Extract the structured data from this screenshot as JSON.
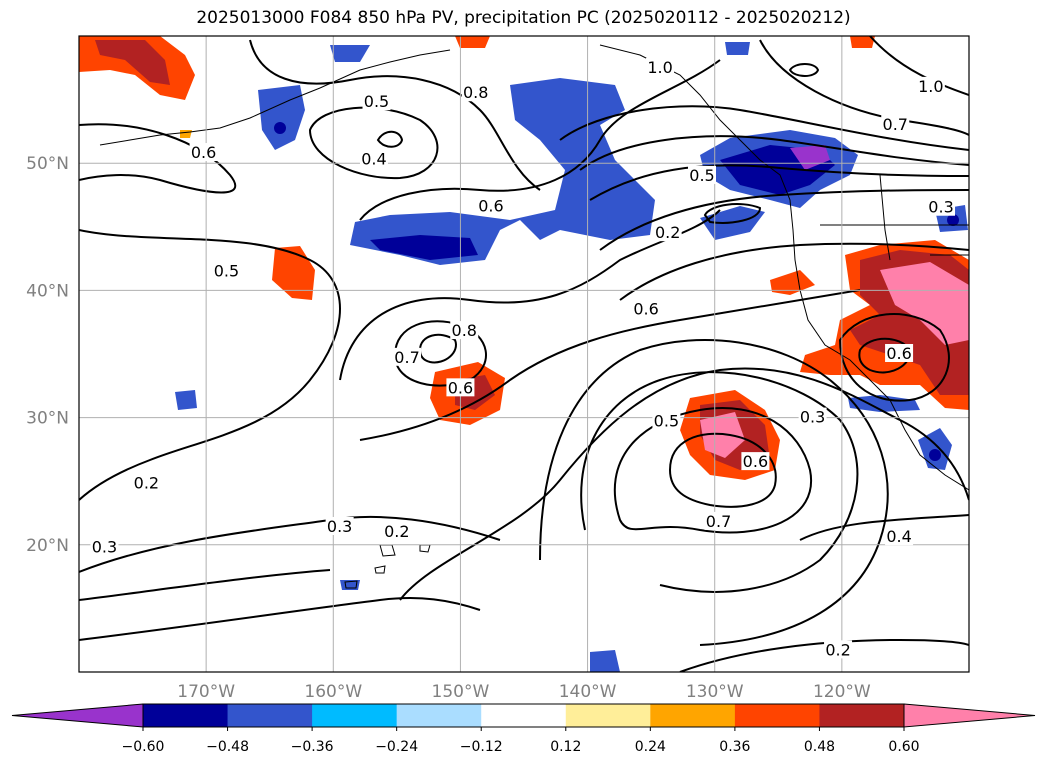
{
  "title": "2025013000 F084 850 hPa PV, precipitation PC (2025020112 - 2025020212)",
  "map": {
    "lon_range": [
      -180,
      -110
    ],
    "lat_range": [
      10,
      60
    ],
    "lat_ticks": [
      {
        "value": 50,
        "label": "50°N"
      },
      {
        "value": 40,
        "label": "40°N"
      },
      {
        "value": 30,
        "label": "30°N"
      },
      {
        "value": 20,
        "label": "20°N"
      }
    ],
    "lon_ticks": [
      {
        "value": -170,
        "label": "170°W"
      },
      {
        "value": -160,
        "label": "160°W"
      },
      {
        "value": -150,
        "label": "150°W"
      },
      {
        "value": -140,
        "label": "140°W"
      },
      {
        "value": -130,
        "label": "130°W"
      },
      {
        "value": -120,
        "label": "120°W"
      }
    ],
    "grid": true,
    "contour_labels": [
      {
        "text": "0.5",
        "lon": -168.4,
        "lat": 41.5
      },
      {
        "text": "0.6",
        "lon": -170.2,
        "lat": 50.8
      },
      {
        "text": "0.5",
        "lon": -156.6,
        "lat": 54.8
      },
      {
        "text": "0.8",
        "lon": -148.8,
        "lat": 55.5
      },
      {
        "text": "0.4",
        "lon": -156.8,
        "lat": 50.3
      },
      {
        "text": "0.6",
        "lon": -147.6,
        "lat": 46.6
      },
      {
        "text": "1.0",
        "lon": -134.3,
        "lat": 57.5
      },
      {
        "text": "1.0",
        "lon": -113.0,
        "lat": 56.0
      },
      {
        "text": "0.7",
        "lon": -115.8,
        "lat": 53.0
      },
      {
        "text": "0.5",
        "lon": -131.0,
        "lat": 49.0
      },
      {
        "text": "0.2",
        "lon": -133.7,
        "lat": 44.5
      },
      {
        "text": "0.3",
        "lon": -112.2,
        "lat": 46.5
      },
      {
        "text": "0.6",
        "lon": -135.4,
        "lat": 38.5
      },
      {
        "text": "0.8",
        "lon": -149.7,
        "lat": 36.8
      },
      {
        "text": "0.7",
        "lon": -154.2,
        "lat": 34.7
      },
      {
        "text": "0.6",
        "lon": -150.0,
        "lat": 32.3
      },
      {
        "text": "0.5",
        "lon": -133.8,
        "lat": 29.7
      },
      {
        "text": "0.6",
        "lon": -126.8,
        "lat": 26.5
      },
      {
        "text": "0.7",
        "lon": -129.7,
        "lat": 21.8
      },
      {
        "text": "0.6",
        "lon": -115.5,
        "lat": 35.0
      },
      {
        "text": "0.3",
        "lon": -122.3,
        "lat": 30.0
      },
      {
        "text": "0.2",
        "lon": -174.7,
        "lat": 24.8
      },
      {
        "text": "0.3",
        "lon": -178.0,
        "lat": 19.8
      },
      {
        "text": "0.3",
        "lon": -159.5,
        "lat": 21.4
      },
      {
        "text": "0.2",
        "lon": -155.0,
        "lat": 21.0
      },
      {
        "text": "0.4",
        "lon": -115.5,
        "lat": 20.6
      },
      {
        "text": "0.2",
        "lon": -120.3,
        "lat": 11.7
      }
    ]
  },
  "colorbar": {
    "colors": [
      "#9933cc",
      "#000099",
      "#3355cc",
      "#00bbff",
      "#aaddff",
      "#ffffff",
      "#ffee99",
      "#ffa500",
      "#ff4400",
      "#b22222",
      "#ff80aa"
    ],
    "ticks": [
      "−0.60",
      "−0.48",
      "−0.36",
      "−0.24",
      "−0.12",
      "0.12",
      "0.24",
      "0.36",
      "0.48",
      "0.60"
    ],
    "extend": "both"
  }
}
